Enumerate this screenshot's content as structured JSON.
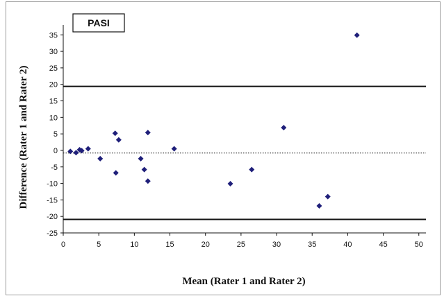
{
  "chart_data": {
    "type": "scatter",
    "title": "PASI",
    "xlabel": "Mean (Rater 1 and Rater 2)",
    "ylabel": "Difference (Rater 1 and Rater 2)",
    "xlim": [
      0,
      51
    ],
    "ylim": [
      -25,
      38
    ],
    "x_ticks": [
      0,
      5,
      10,
      15,
      20,
      25,
      30,
      35,
      40,
      45,
      50
    ],
    "y_ticks": [
      35,
      30,
      25,
      20,
      15,
      10,
      5,
      0,
      -5,
      -10,
      -15,
      -20,
      -25
    ],
    "grid": false,
    "marker": "diamond",
    "marker_color": "#1f1f7a",
    "series": [
      {
        "points": [
          {
            "x": 1.0,
            "y": -0.3
          },
          {
            "x": 1.8,
            "y": -0.7
          },
          {
            "x": 2.3,
            "y": 0.2
          },
          {
            "x": 2.6,
            "y": -0.1
          },
          {
            "x": 3.5,
            "y": 0.5
          },
          {
            "x": 5.2,
            "y": -2.5
          },
          {
            "x": 7.3,
            "y": 5.2
          },
          {
            "x": 7.8,
            "y": 3.2
          },
          {
            "x": 7.4,
            "y": -6.8
          },
          {
            "x": 10.9,
            "y": -2.5
          },
          {
            "x": 11.4,
            "y": -5.8
          },
          {
            "x": 11.9,
            "y": 5.4
          },
          {
            "x": 11.9,
            "y": -9.3
          },
          {
            "x": 15.6,
            "y": 0.5
          },
          {
            "x": 23.5,
            "y": -10.1
          },
          {
            "x": 26.5,
            "y": -5.8
          },
          {
            "x": 31.0,
            "y": 6.9
          },
          {
            "x": 36.0,
            "y": -16.8
          },
          {
            "x": 37.2,
            "y": -14.0
          },
          {
            "x": 41.3,
            "y": 34.9
          }
        ]
      }
    ],
    "reference_lines": [
      {
        "y": 19.4,
        "style": "solid"
      },
      {
        "y": -0.8,
        "style": "dotted"
      },
      {
        "y": -20.9,
        "style": "solid"
      }
    ]
  }
}
